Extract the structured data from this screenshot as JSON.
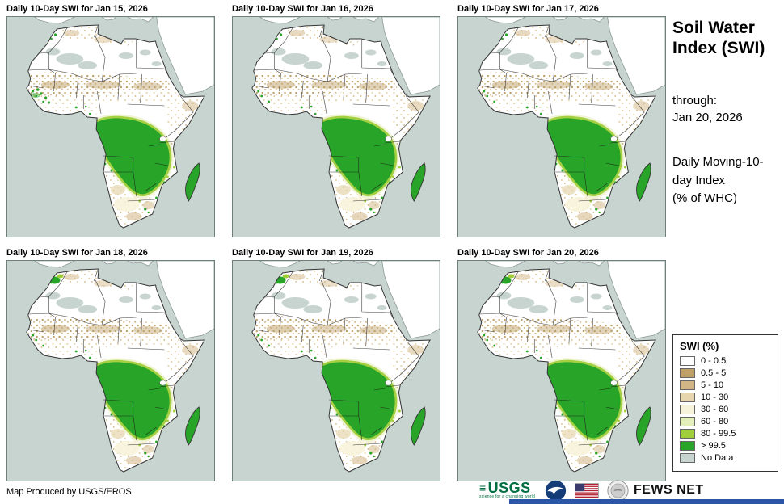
{
  "panels": [
    {
      "title": "Daily 10-Day SWI for Jan 15, 2026"
    },
    {
      "title": "Daily 10-Day SWI for Jan 16, 2026"
    },
    {
      "title": "Daily 10-Day SWI for Jan 17, 2026"
    },
    {
      "title": "Daily 10-Day SWI for Jan 18, 2026"
    },
    {
      "title": "Daily 10-Day SWI for Jan 19, 2026"
    },
    {
      "title": "Daily 10-Day SWI for Jan 20, 2026"
    }
  ],
  "sidebar": {
    "title": "Soil Water Index (SWI)",
    "through_label": "through:",
    "through_date": "Jan 20, 2026",
    "index_desc": "Daily Moving-10-day Index",
    "units": "(% of WHC)"
  },
  "legend": {
    "title": "SWI (%)",
    "items": [
      {
        "label": "0 - 0.5",
        "color": "#ffffff"
      },
      {
        "label": "0.5 - 5",
        "color": "#bfa066"
      },
      {
        "label": "5 - 10",
        "color": "#d2b584"
      },
      {
        "label": "10 - 30",
        "color": "#e6d5ad"
      },
      {
        "label": "30 - 60",
        "color": "#f7f3da"
      },
      {
        "label": "60 - 80",
        "color": "#e3efb8"
      },
      {
        "label": "80 - 99.5",
        "color": "#9fce3a"
      },
      {
        "label": "> 99.5",
        "color": "#28a428"
      },
      {
        "label": "No Data",
        "color": "#c7d4d0"
      }
    ]
  },
  "footer": {
    "credit": "Map Produced by USGS/EROS",
    "usgs": {
      "text": "USGS",
      "tagline": "science for a changing world"
    },
    "fewsnet": {
      "text": "FEWS NET"
    },
    "accent_color": "#2a57a5"
  },
  "map": {
    "ocean_color": "#c7d4d0",
    "land_color": "#ffffff"
  }
}
